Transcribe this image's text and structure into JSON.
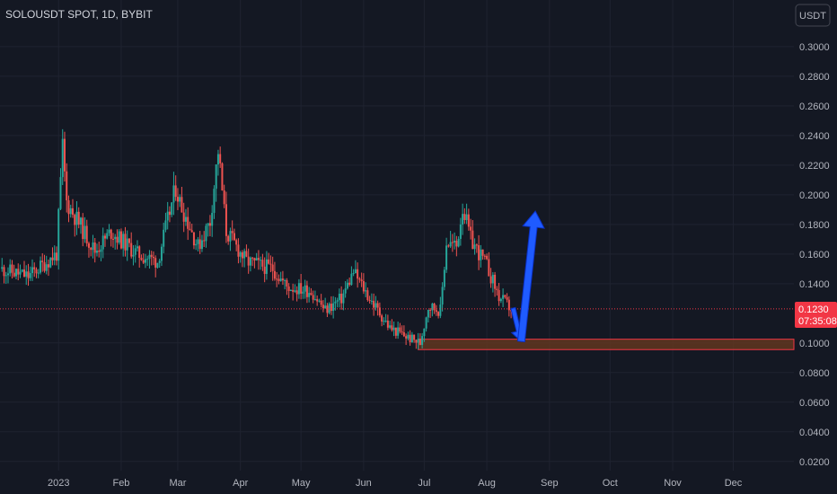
{
  "header": {
    "title": "SOLOUSDT SPOT, 1D, BYBIT"
  },
  "currency_button": {
    "label": "USDT"
  },
  "price_badge": {
    "price": "0.1230",
    "countdown": "07:35:08"
  },
  "colors": {
    "background": "#141823",
    "grid": "#1f2330",
    "up": "#26a69a",
    "down": "#ef5350",
    "zone_fill": "#6b3a1f",
    "zone_border": "#f23645",
    "arrow": "#1f5bff",
    "price_line": "#f23645"
  },
  "chart_data": {
    "type": "candlestick",
    "symbol": "SOLOUSDT",
    "interval": "1D",
    "exchange": "BYBIT",
    "quote": "USDT",
    "x_tick_labels": [
      "2023",
      "Feb",
      "Mar",
      "Apr",
      "May",
      "Jun",
      "Jul",
      "Aug",
      "Sep",
      "Oct",
      "Nov",
      "Dec"
    ],
    "y_ticks": [
      "0.3000",
      "0.2800",
      "0.2600",
      "0.2400",
      "0.2200",
      "0.2000",
      "0.1800",
      "0.1600",
      "0.1400",
      "0.1000",
      "0.0800",
      "0.0600",
      "0.0400",
      "0.0200"
    ],
    "ylim": [
      0.0138,
      0.3072
    ],
    "last_price": 0.123,
    "support_zone": {
      "low": 0.0955,
      "high": 0.1025
    },
    "projection": [
      {
        "date": "2023-08-14",
        "price": 0.1235,
        "note": "drop arrow start"
      },
      {
        "date": "2023-08-18",
        "price": 0.101,
        "note": "support touch"
      },
      {
        "date": "2023-08-25",
        "price": 0.189,
        "note": "target"
      }
    ],
    "price_path_close_approx": [
      {
        "date": "2022-12-04",
        "close": 0.15
      },
      {
        "date": "2022-12-18",
        "close": 0.145
      },
      {
        "date": "2023-01-01",
        "close": 0.16
      },
      {
        "date": "2023-01-04",
        "close": 0.232
      },
      {
        "date": "2023-01-06",
        "close": 0.195
      },
      {
        "date": "2023-01-20",
        "close": 0.162
      },
      {
        "date": "2023-01-28",
        "close": 0.175
      },
      {
        "date": "2023-02-10",
        "close": 0.16
      },
      {
        "date": "2023-02-20",
        "close": 0.155
      },
      {
        "date": "2023-03-01",
        "close": 0.205
      },
      {
        "date": "2023-03-03",
        "close": 0.195
      },
      {
        "date": "2023-03-12",
        "close": 0.165
      },
      {
        "date": "2023-03-18",
        "close": 0.182
      },
      {
        "date": "2023-03-22",
        "close": 0.23
      },
      {
        "date": "2023-03-26",
        "close": 0.175
      },
      {
        "date": "2023-04-05",
        "close": 0.155
      },
      {
        "date": "2023-04-18",
        "close": 0.15
      },
      {
        "date": "2023-04-25",
        "close": 0.138
      },
      {
        "date": "2023-05-07",
        "close": 0.135
      },
      {
        "date": "2023-05-14",
        "close": 0.122
      },
      {
        "date": "2023-05-22",
        "close": 0.13
      },
      {
        "date": "2023-05-28",
        "close": 0.148
      },
      {
        "date": "2023-06-05",
        "close": 0.13
      },
      {
        "date": "2023-06-15",
        "close": 0.11
      },
      {
        "date": "2023-06-25",
        "close": 0.103
      },
      {
        "date": "2023-06-30",
        "close": 0.1
      },
      {
        "date": "2023-07-04",
        "close": 0.125
      },
      {
        "date": "2023-07-10",
        "close": 0.122
      },
      {
        "date": "2023-07-13",
        "close": 0.168
      },
      {
        "date": "2023-07-18",
        "close": 0.165
      },
      {
        "date": "2023-07-21",
        "close": 0.192
      },
      {
        "date": "2023-07-25",
        "close": 0.17
      },
      {
        "date": "2023-08-02",
        "close": 0.152
      },
      {
        "date": "2023-08-08",
        "close": 0.131
      },
      {
        "date": "2023-08-14",
        "close": 0.123
      }
    ]
  }
}
